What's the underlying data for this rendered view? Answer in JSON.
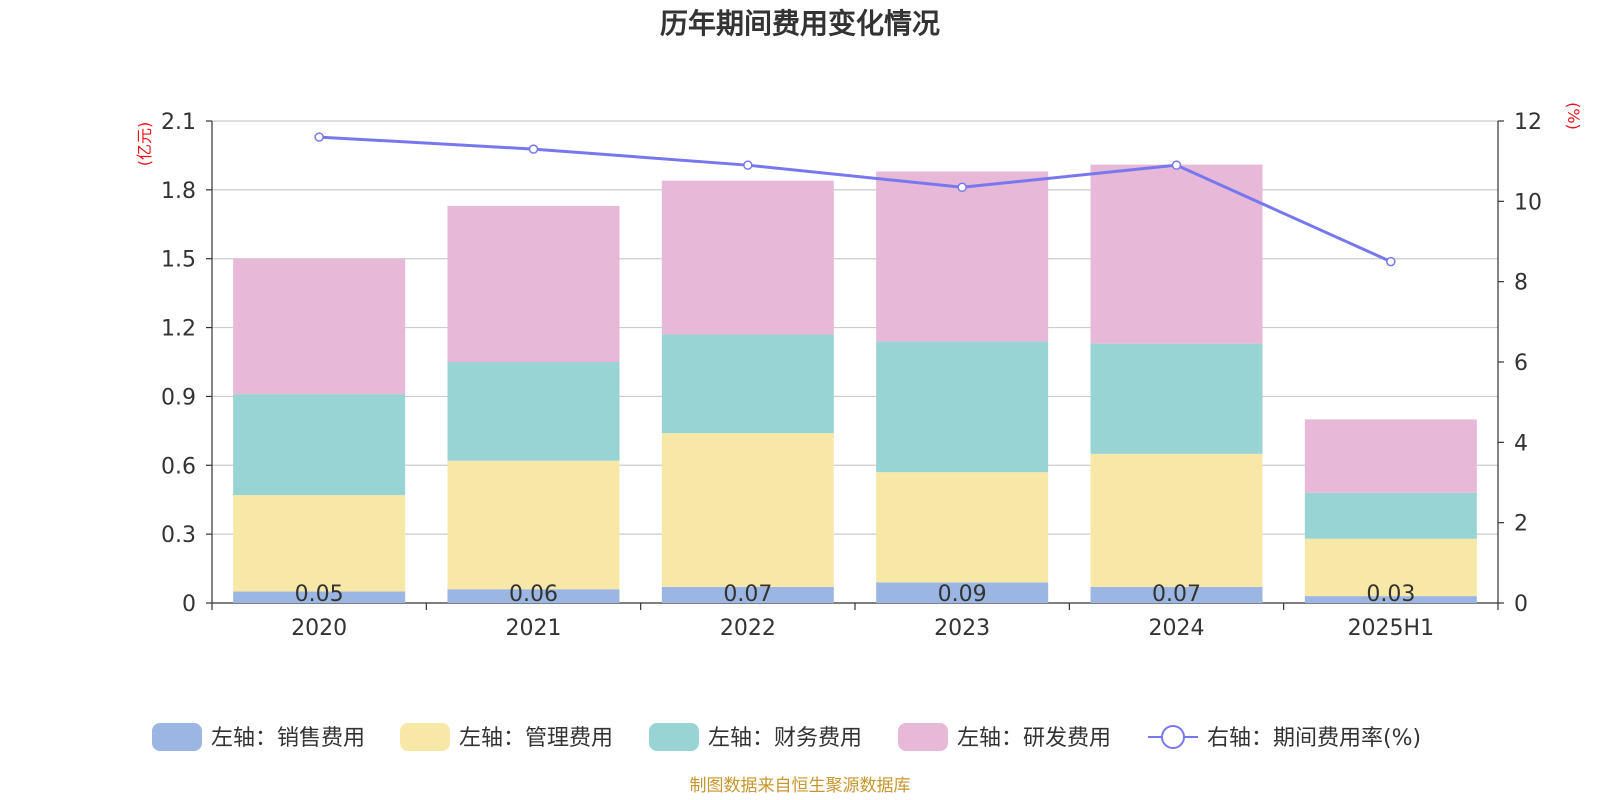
{
  "chart_data": {
    "type": "bar",
    "title": "历年期间费用变化情况",
    "categories": [
      "2020",
      "2021",
      "2022",
      "2023",
      "2024",
      "2025H1"
    ],
    "stacked": true,
    "series": [
      {
        "name": "左轴：销售费用",
        "axis": "left",
        "type": "bar",
        "color": "#9bb6e2",
        "values": [
          0.05,
          0.06,
          0.07,
          0.09,
          0.07,
          0.03
        ]
      },
      {
        "name": "左轴：管理费用",
        "axis": "left",
        "type": "bar",
        "color": "#f8e8a8",
        "values": [
          0.42,
          0.56,
          0.67,
          0.48,
          0.58,
          0.25
        ]
      },
      {
        "name": "左轴：财务费用",
        "axis": "left",
        "type": "bar",
        "color": "#98d4d4",
        "values": [
          0.44,
          0.43,
          0.43,
          0.57,
          0.48,
          0.2
        ]
      },
      {
        "name": "左轴：研发费用",
        "axis": "left",
        "type": "bar",
        "color": "#e8b8d8",
        "values": [
          0.59,
          0.68,
          0.67,
          0.74,
          0.78,
          0.32
        ]
      },
      {
        "name": "右轴：期间费用率(%)",
        "axis": "right",
        "type": "line",
        "color": "#7878ee",
        "values": [
          11.6,
          11.3,
          10.9,
          10.35,
          10.9,
          8.5
        ]
      }
    ],
    "bar_labels": [
      "0.05",
      "0.06",
      "0.07",
      "0.09",
      "0.07",
      "0.03"
    ],
    "y_left": {
      "unit": "(亿元)",
      "ylim": [
        0,
        2.1
      ],
      "ticks": [
        "0",
        "0.3",
        "0.6",
        "0.9",
        "1.2",
        "1.5",
        "1.8",
        "2.1"
      ]
    },
    "y_right": {
      "unit": "(%)",
      "ylim": [
        0,
        12
      ],
      "ticks": [
        "0",
        "2",
        "4",
        "6",
        "8",
        "10",
        "12"
      ]
    },
    "grid": true,
    "legend_position": "bottom"
  },
  "source_note": "制图数据来自恒生聚源数据库"
}
